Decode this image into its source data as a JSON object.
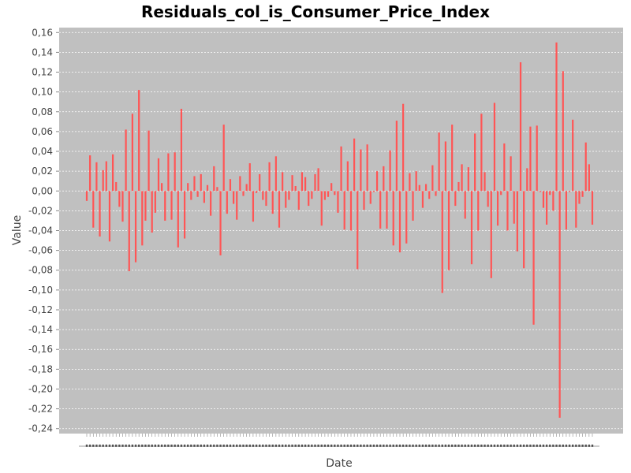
{
  "chart_data": {
    "type": "bar",
    "title": "Residuals_col_is_Consumer_Price_Index",
    "xlabel": "Date",
    "ylabel": "Value",
    "ylim": [
      -0.245,
      0.165
    ],
    "yticks": [
      0.16,
      0.14,
      0.12,
      0.1,
      0.08,
      0.06,
      0.04,
      0.02,
      0.0,
      -0.02,
      -0.04,
      -0.06,
      -0.08,
      -0.1,
      -0.12,
      -0.14,
      -0.16,
      -0.18,
      -0.2,
      -0.22,
      -0.24
    ],
    "ytick_labels": [
      "0,16",
      "0,14",
      "0,12",
      "0,10",
      "0,08",
      "0,06",
      "0,04",
      "0,02",
      "0,00",
      "-0,02",
      "-0,04",
      "-0,06",
      "-0,08",
      "-0,10",
      "-0,12",
      "-0,14",
      "-0,16",
      "-0,18",
      "-0,20",
      "-0,22",
      "-0,24"
    ],
    "grid": true,
    "colors": {
      "bar": "#ff5555",
      "plot_bg": "#c0c0c0",
      "grid": "#ffffff"
    },
    "series": [
      {
        "values": [
          -0.01,
          0.036,
          -0.037,
          0.029,
          -0.046,
          0.021,
          0.03,
          -0.051,
          0.037,
          0.009,
          -0.016,
          -0.031,
          0.062,
          -0.081,
          0.078,
          -0.072,
          0.102,
          -0.055,
          -0.03,
          0.061,
          -0.042,
          -0.022,
          0.033,
          0.008,
          -0.03,
          0.038,
          -0.029,
          0.039,
          -0.057,
          0.083,
          -0.048,
          0.008,
          -0.009,
          0.015,
          -0.006,
          0.017,
          -0.012,
          0.006,
          -0.025,
          0.025,
          0.004,
          -0.065,
          0.067,
          -0.023,
          0.012,
          -0.013,
          -0.029,
          0.015,
          -0.005,
          0.007,
          0.028,
          -0.031,
          -0.002,
          0.017,
          -0.009,
          -0.015,
          0.029,
          -0.023,
          0.035,
          -0.037,
          0.019,
          -0.017,
          -0.009,
          0.016,
          0.005,
          -0.019,
          0.019,
          0.014,
          -0.015,
          -0.008,
          0.017,
          0.023,
          -0.035,
          -0.009,
          -0.006,
          0.008,
          -0.004,
          -0.022,
          0.045,
          -0.039,
          0.03,
          -0.04,
          0.053,
          -0.079,
          0.042,
          -0.019,
          0.047,
          -0.013,
          -0.001,
          0.02,
          -0.038,
          0.025,
          -0.038,
          0.041,
          -0.055,
          0.071,
          -0.062,
          0.088,
          -0.053,
          0.018,
          -0.03,
          0.02,
          0.006,
          -0.017,
          0.007,
          -0.008,
          0.026,
          -0.005,
          0.059,
          -0.103,
          0.05,
          -0.08,
          0.067,
          -0.015,
          0.009,
          0.027,
          -0.028,
          0.024,
          -0.074,
          0.058,
          -0.04,
          0.078,
          0.019,
          -0.016,
          -0.088,
          0.089,
          -0.035,
          -0.004,
          0.048,
          -0.04,
          0.035,
          -0.033,
          -0.061,
          0.13,
          -0.078,
          0.023,
          0.065,
          -0.135,
          0.066,
          -0.001,
          -0.017,
          -0.034,
          -0.004,
          -0.02,
          0.15,
          -0.229,
          0.121,
          -0.039,
          -0.001,
          0.072,
          -0.037,
          -0.013,
          -0.006,
          0.049,
          0.027,
          -0.034
        ]
      }
    ]
  }
}
